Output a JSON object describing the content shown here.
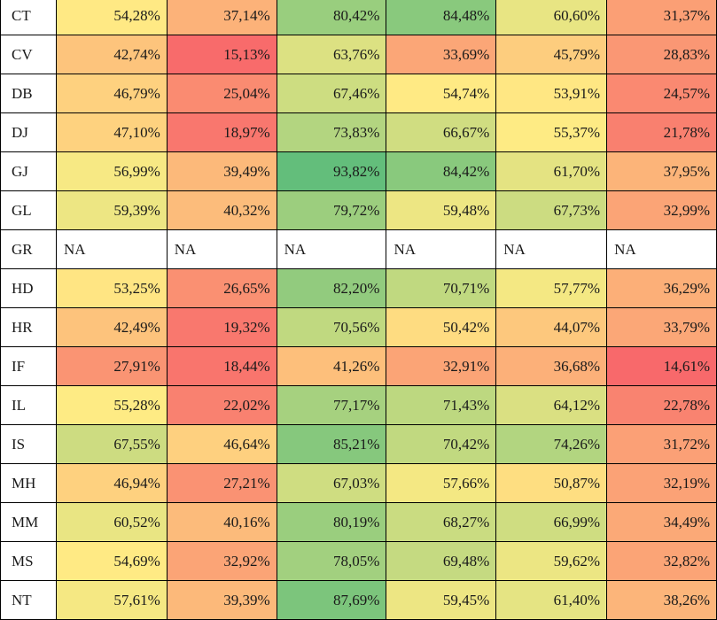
{
  "table": {
    "rows": [
      {
        "code": "CT",
        "values": [
          "54,28%",
          "37,14%",
          "80,42%",
          "84,48%",
          "60,60%",
          "31,37%"
        ]
      },
      {
        "code": "CV",
        "values": [
          "42,74%",
          "15,13%",
          "63,76%",
          "33,69%",
          "45,79%",
          "28,83%"
        ]
      },
      {
        "code": "DB",
        "values": [
          "46,79%",
          "25,04%",
          "67,46%",
          "54,74%",
          "53,91%",
          "24,57%"
        ]
      },
      {
        "code": "DJ",
        "values": [
          "47,10%",
          "18,97%",
          "73,83%",
          "66,67%",
          "55,37%",
          "21,78%"
        ]
      },
      {
        "code": "GJ",
        "values": [
          "56,99%",
          "39,49%",
          "93,82%",
          "84,42%",
          "61,70%",
          "37,95%"
        ]
      },
      {
        "code": "GL",
        "values": [
          "59,39%",
          "40,32%",
          "79,72%",
          "59,48%",
          "67,73%",
          "32,99%"
        ]
      },
      {
        "code": "GR",
        "values": [
          "NA",
          "NA",
          "NA",
          "NA",
          "NA",
          "NA"
        ]
      },
      {
        "code": "HD",
        "values": [
          "53,25%",
          "26,65%",
          "82,20%",
          "70,71%",
          "57,77%",
          "36,29%"
        ]
      },
      {
        "code": "HR",
        "values": [
          "42,49%",
          "19,32%",
          "70,56%",
          "50,42%",
          "44,07%",
          "33,79%"
        ]
      },
      {
        "code": "IF",
        "values": [
          "27,91%",
          "18,44%",
          "41,26%",
          "32,91%",
          "36,68%",
          "14,61%"
        ]
      },
      {
        "code": "IL",
        "values": [
          "55,28%",
          "22,02%",
          "77,17%",
          "71,43%",
          "64,12%",
          "22,78%"
        ]
      },
      {
        "code": "IS",
        "values": [
          "67,55%",
          "46,64%",
          "85,21%",
          "70,42%",
          "74,26%",
          "31,72%"
        ]
      },
      {
        "code": "MH",
        "values": [
          "46,94%",
          "27,21%",
          "67,03%",
          "57,66%",
          "50,87%",
          "32,19%"
        ]
      },
      {
        "code": "MM",
        "values": [
          "60,52%",
          "40,16%",
          "80,19%",
          "68,27%",
          "66,99%",
          "34,49%"
        ]
      },
      {
        "code": "MS",
        "values": [
          "54,69%",
          "32,92%",
          "78,05%",
          "69,48%",
          "59,62%",
          "32,82%"
        ]
      },
      {
        "code": "NT",
        "values": [
          "57,61%",
          "39,39%",
          "87,69%",
          "59,45%",
          "61,40%",
          "38,26%"
        ]
      }
    ]
  },
  "colors": {
    "scale_low": "#f8696b",
    "scale_mid": "#ffeb84",
    "scale_high": "#63be7b",
    "scale_min_value": 14.61,
    "scale_mid_value": 55,
    "scale_max_value": 93.82,
    "cell_border": "#000000",
    "na_background": "#ffffff"
  }
}
